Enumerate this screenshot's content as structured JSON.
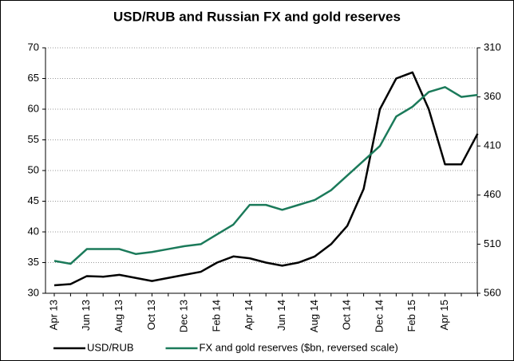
{
  "chart_data": {
    "type": "line",
    "title": "USD/RUB and Russian FX and gold reserves",
    "categories": [
      "Apr 13",
      null,
      "Jun 13",
      null,
      "Aug 13",
      null,
      "Oct 13",
      null,
      "Dec 13",
      null,
      "Feb 14",
      null,
      "Apr 14",
      null,
      "Jun 14",
      null,
      "Aug 14",
      null,
      "Oct 14",
      null,
      "Dec 14",
      null,
      "Feb 15",
      null,
      "Apr 15",
      null,
      null
    ],
    "series": [
      {
        "name": "USD/RUB",
        "color": "#000000",
        "values": [
          31.3,
          31.5,
          32.8,
          32.7,
          33,
          32.5,
          32,
          32.5,
          33,
          33.5,
          35,
          36,
          35.7,
          35,
          34.5,
          35,
          36,
          38,
          41,
          47,
          60,
          65,
          66,
          60,
          51,
          51,
          56
        ]
      },
      {
        "name": "FX and gold reserves ($bn, reversed scale)",
        "color": "#1b7a5a",
        "axis": "y2",
        "values": [
          527,
          530,
          515,
          515,
          515,
          520,
          518,
          515,
          512,
          510,
          500,
          490,
          470,
          470,
          475,
          470,
          465,
          455,
          440,
          425,
          410,
          380,
          370,
          355,
          350,
          360,
          358
        ]
      }
    ],
    "ylim": [
      30,
      70
    ],
    "yticks": [
      30,
      35,
      40,
      45,
      50,
      55,
      60,
      65,
      70
    ],
    "y2lim": [
      560,
      310
    ],
    "y2ticks": [
      310,
      360,
      410,
      460,
      510,
      560
    ],
    "y2_reversed": true,
    "grid": true,
    "legend": "bottom"
  }
}
